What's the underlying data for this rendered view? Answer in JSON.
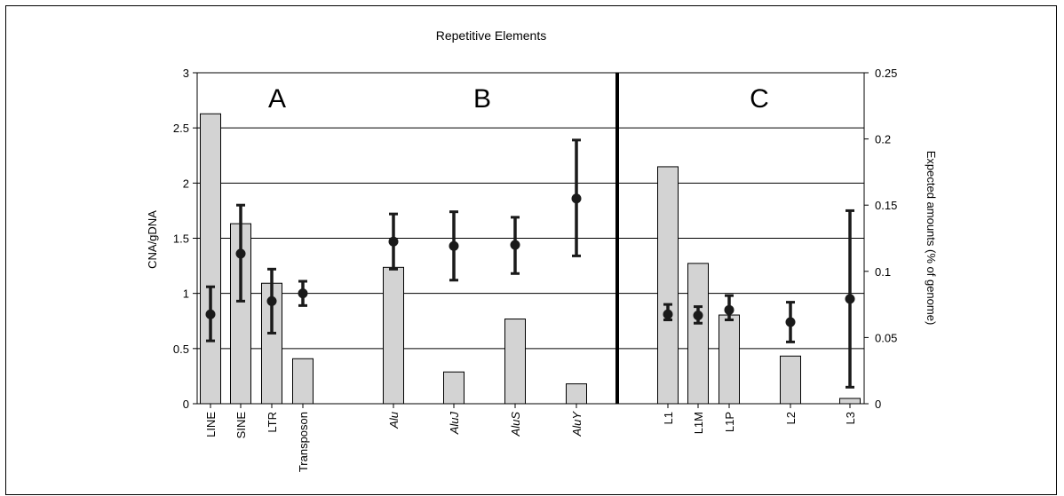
{
  "chart_data": {
    "type": "bar",
    "title": "Repetitive Elements",
    "ylabel": "CNA/gDNA",
    "y2label": "Expected amounts (% of genome)",
    "ylim": [
      0,
      3
    ],
    "y2lim": [
      0,
      0.25
    ],
    "yticks": [
      "0",
      "0.5",
      "1",
      "1.5",
      "2",
      "2.5",
      "3"
    ],
    "y2ticks": [
      "0",
      "0.05",
      "0.1",
      "0.15",
      "0.2",
      "0.25"
    ],
    "grid": true,
    "panels": [
      "A",
      "B",
      "C"
    ],
    "categories": [
      "LINE",
      "SINE",
      "LTR",
      "Transposon",
      "Alu",
      "AluJ",
      "AluS",
      "AluY",
      "L1",
      "L1M",
      "L1P",
      "L2",
      "L3"
    ],
    "italic_categories": [
      "Alu",
      "AluJ",
      "AluS",
      "AluY"
    ],
    "series": [
      {
        "type": "bar",
        "axis": "right",
        "values": [
          0.219,
          0.136,
          0.091,
          0.034,
          0.103,
          0.024,
          0.064,
          0.015,
          0.179,
          0.106,
          0.067,
          0.036,
          0.004
        ]
      },
      {
        "type": "point-errorbar",
        "axis": "left",
        "values": [
          0.81,
          1.36,
          0.93,
          1.0,
          1.47,
          1.43,
          1.44,
          1.86,
          0.81,
          0.8,
          0.85,
          0.74,
          0.95
        ],
        "lower": [
          0.57,
          0.93,
          0.64,
          0.89,
          1.22,
          1.12,
          1.18,
          1.34,
          0.76,
          0.73,
          0.76,
          0.56,
          0.15
        ],
        "upper": [
          1.06,
          1.8,
          1.22,
          1.11,
          1.72,
          1.74,
          1.69,
          2.39,
          0.9,
          0.88,
          0.98,
          0.92,
          1.75
        ]
      }
    ],
    "colors": {
      "bar": "#d3d3d3",
      "point": "#1a1a1a",
      "grid": "#000000"
    }
  }
}
